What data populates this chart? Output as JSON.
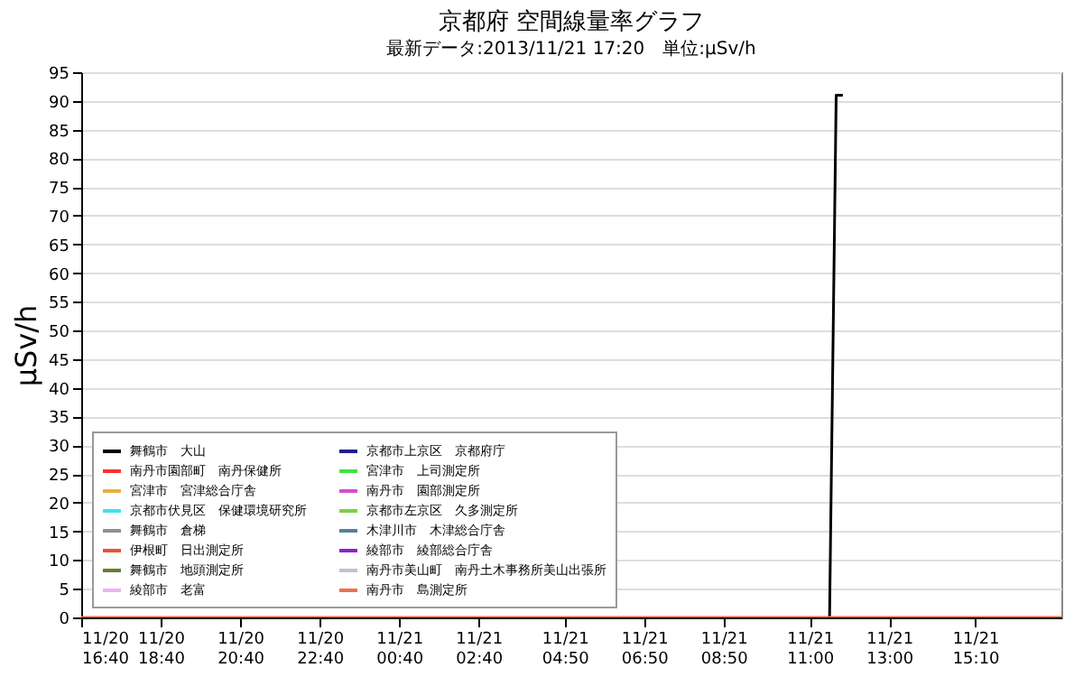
{
  "chart_data": {
    "type": "line",
    "title": "京都府 空間線量率グラフ",
    "subtitle": "最新データ:2013/11/21 17:20　単位:μSv/h",
    "ylabel": "μSv/h",
    "xlim": [
      "2013-11-20T16:40",
      "2013-11-21T17:20"
    ],
    "xticks": [
      {
        "value": "2013-11-20T16:40",
        "label": "11/20\n16:40"
      },
      {
        "value": "2013-11-20T18:40",
        "label": "11/20\n18:40"
      },
      {
        "value": "2013-11-20T20:40",
        "label": "11/20\n20:40"
      },
      {
        "value": "2013-11-20T22:40",
        "label": "11/20\n22:40"
      },
      {
        "value": "2013-11-21T00:40",
        "label": "11/21\n00:40"
      },
      {
        "value": "2013-11-21T02:40",
        "label": "11/21\n02:40"
      },
      {
        "value": "2013-11-21T04:50",
        "label": "11/21\n04:50"
      },
      {
        "value": "2013-11-21T06:50",
        "label": "11/21\n06:50"
      },
      {
        "value": "2013-11-21T08:50",
        "label": "11/21\n08:50"
      },
      {
        "value": "2013-11-21T11:00",
        "label": "11/21\n11:00"
      },
      {
        "value": "2013-11-21T13:00",
        "label": "11/21\n13:00"
      },
      {
        "value": "2013-11-21T15:10",
        "label": "11/21\n15:10"
      }
    ],
    "ylim": [
      0,
      95
    ],
    "yticks": [
      0,
      5,
      10,
      15,
      20,
      25,
      30,
      35,
      40,
      45,
      50,
      55,
      60,
      65,
      70,
      75,
      80,
      85,
      90,
      95
    ],
    "grid": "y",
    "legend": "bottom left",
    "marker": "none",
    "line_style": "solid",
    "series": [
      {
        "name": "舞鶴市　大山",
        "color": "#000000",
        "x": [
          "2013-11-21T11:30",
          "2013-11-21T11:40",
          "2013-11-21T11:50"
        ],
        "values": [
          0,
          91,
          91
        ]
      },
      {
        "name": "南丹市園部町　南丹保健所",
        "color": "#ff3030"
      },
      {
        "name": "宮津市　宮津総合庁舎",
        "color": "#e8b040"
      },
      {
        "name": "京都市伏見区　保健環境研究所",
        "color": "#40e0f0"
      },
      {
        "name": "舞鶴市　倉梯",
        "color": "#909090"
      },
      {
        "name": "伊根町　日出測定所",
        "color": "#f05030"
      },
      {
        "name": "舞鶴市　地頭測定所",
        "color": "#608030"
      },
      {
        "name": "綾部市　老富",
        "color": "#f0b0f0"
      },
      {
        "name": "京都市上京区　京都府庁",
        "color": "#202090"
      },
      {
        "name": "宮津市　上司測定所",
        "color": "#40e040"
      },
      {
        "name": "南丹市　園部測定所",
        "color": "#d050d0"
      },
      {
        "name": "京都市左京区　久多測定所",
        "color": "#80d040"
      },
      {
        "name": "木津川市　木津総合庁舎",
        "color": "#5080a0"
      },
      {
        "name": "綾部市　綾部総合庁舎",
        "color": "#9020d0"
      },
      {
        "name": "南丹市美山町　南丹土木事務所美山出張所",
        "color": "#c0c0d8"
      },
      {
        "name": "南丹市　島測定所",
        "color": "#f07050",
        "x": [
          "2013-11-20T16:40",
          "2013-11-21T17:20"
        ],
        "values": [
          0,
          0
        ]
      }
    ]
  }
}
